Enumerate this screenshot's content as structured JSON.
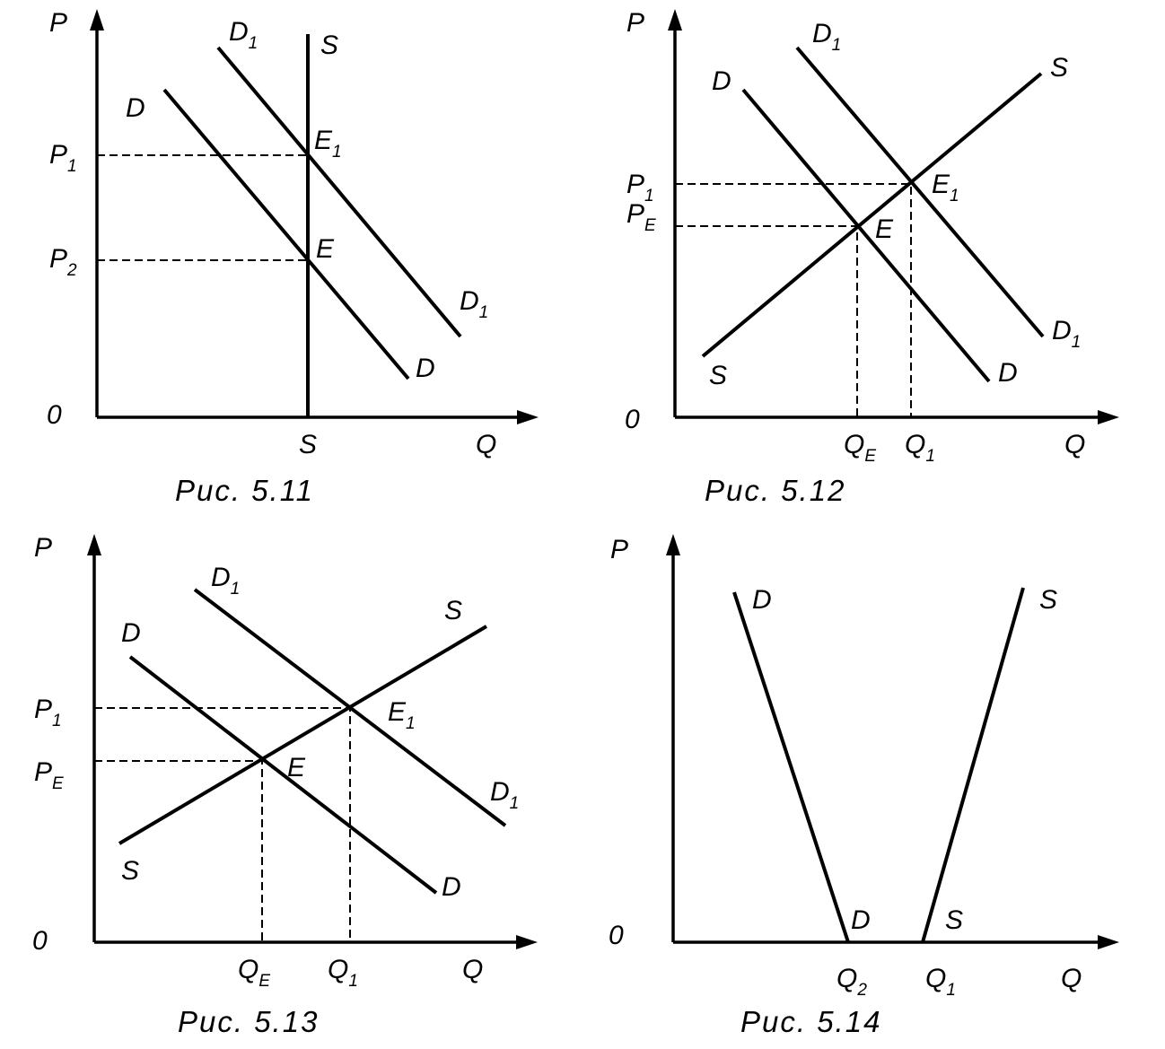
{
  "figures": [
    {
      "caption": "Рис. 5.11",
      "axis": {
        "y": "P",
        "x": "Q",
        "origin": "0"
      },
      "labels": [
        {
          "text": "D",
          "sub": "1"
        },
        "S",
        "D",
        {
          "text": "P",
          "sub": "1"
        },
        {
          "text": "E",
          "sub": "1"
        },
        {
          "text": "P",
          "sub": "2"
        },
        "E",
        {
          "text": "D",
          "sub": "1"
        },
        "D",
        "S"
      ]
    },
    {
      "caption": "Рис. 5.12",
      "axis": {
        "y": "P",
        "x": "Q",
        "origin": "0"
      },
      "labels": [
        {
          "text": "D",
          "sub": "1"
        },
        "D",
        "S",
        {
          "text": "P",
          "sub": "1"
        },
        {
          "text": "P",
          "sub": "E"
        },
        {
          "text": "E",
          "sub": "1"
        },
        "E",
        {
          "text": "D",
          "sub": "1"
        },
        "D",
        "S",
        {
          "text": "Q",
          "sub": "E"
        },
        {
          "text": "Q",
          "sub": "1"
        }
      ]
    },
    {
      "caption": "Рис. 5.13",
      "axis": {
        "y": "P",
        "x": "Q",
        "origin": "0"
      },
      "labels": [
        {
          "text": "D",
          "sub": "1"
        },
        "D",
        "S",
        {
          "text": "P",
          "sub": "1"
        },
        {
          "text": "P",
          "sub": "E"
        },
        {
          "text": "E",
          "sub": "1"
        },
        "E",
        {
          "text": "D",
          "sub": "1"
        },
        "D",
        "S",
        {
          "text": "Q",
          "sub": "E"
        },
        {
          "text": "Q",
          "sub": "1"
        }
      ]
    },
    {
      "caption": "Рис. 5.14",
      "axis": {
        "y": "P",
        "x": "Q",
        "origin": "0"
      },
      "labels": [
        "D",
        "S",
        "D",
        "S",
        {
          "text": "Q",
          "sub": "2"
        },
        {
          "text": "Q",
          "sub": "1"
        }
      ]
    }
  ]
}
